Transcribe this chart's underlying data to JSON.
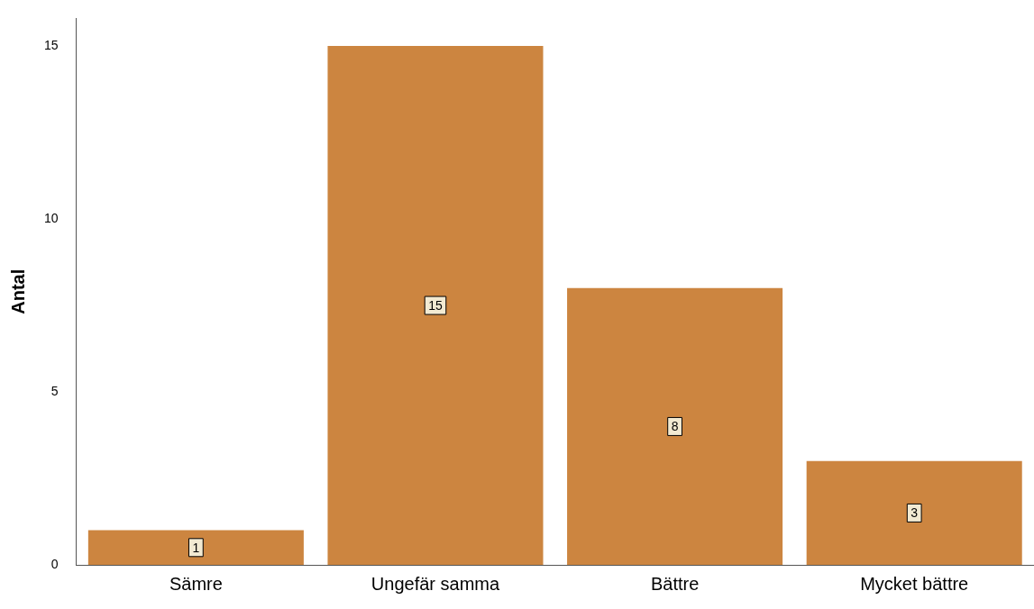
{
  "chart_data": {
    "type": "bar",
    "ylabel": "Antal",
    "categories": [
      "Sämre",
      "Ungefär samma",
      "Bättre",
      "Mycket bättre"
    ],
    "values": [
      1,
      15,
      8,
      3
    ],
    "color": "#cc8540",
    "ylim": [
      0,
      15.8
    ],
    "yticks": [
      0,
      5,
      10,
      15
    ],
    "grid": false,
    "legend": false,
    "data_labels": true
  }
}
